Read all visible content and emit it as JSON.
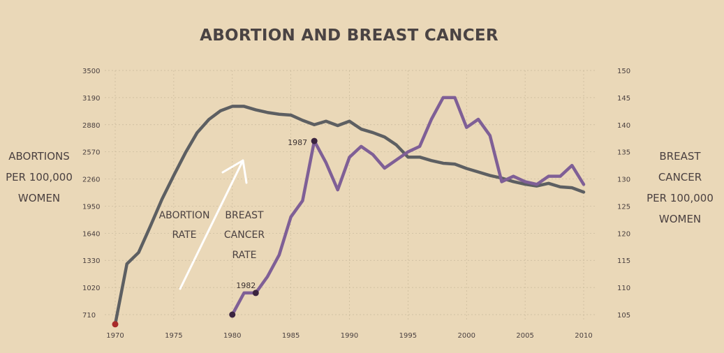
{
  "colors": {
    "background": "#ead8b8",
    "abortion_line": "#5d5f62",
    "cancer_line": "#7f5f96",
    "start_dot": "#a82a2a",
    "highlight_dot": "#3b2440",
    "grid": "#c8b89a",
    "arrow": "#ffffff"
  },
  "chart_data": {
    "type": "line",
    "title": "ABORTION AND BREAST CANCER",
    "x": [
      1970,
      1971,
      1972,
      1973,
      1974,
      1975,
      1976,
      1977,
      1978,
      1979,
      1980,
      1981,
      1982,
      1983,
      1984,
      1985,
      1986,
      1987,
      1988,
      1989,
      1990,
      1991,
      1992,
      1993,
      1994,
      1995,
      1996,
      1997,
      1998,
      1999,
      2000,
      2001,
      2002,
      2003,
      2004,
      2005,
      2006,
      2007,
      2008,
      2009,
      2010
    ],
    "x_ticks": [
      "1970",
      "1975",
      "1980",
      "1985",
      "1990",
      "1995",
      "2000",
      "2005",
      "2010"
    ],
    "xlim": [
      1970,
      2010
    ],
    "y_left": {
      "label": [
        "ABORTIONS",
        "PER 100,000",
        "WOMEN"
      ],
      "ticks": [
        "3500",
        "3190",
        "2880",
        "2570",
        "2260",
        "1950",
        "1640",
        "1330",
        "1020",
        "710"
      ],
      "ylim": [
        600,
        3500
      ]
    },
    "y_right": {
      "label": [
        "BREAST",
        "CANCER",
        "PER 100,000",
        "WOMEN"
      ],
      "ticks": [
        "150",
        "145",
        "140",
        "135",
        "130",
        "125",
        "120",
        "115",
        "110",
        "105"
      ],
      "ylim": [
        103.6,
        150
      ]
    },
    "grid": true,
    "series": [
      {
        "name": "ABORTION RATE",
        "axis": "left",
        "values": [
          600,
          1290,
          1420,
          1720,
          2030,
          2300,
          2560,
          2790,
          2940,
          3040,
          3090,
          3090,
          3050,
          3020,
          3000,
          2990,
          2930,
          2880,
          2920,
          2870,
          2920,
          2830,
          2790,
          2740,
          2650,
          2510,
          2510,
          2470,
          2440,
          2430,
          2380,
          2340,
          2300,
          2270,
          2230,
          2200,
          2180,
          2210,
          2170,
          2160,
          2110
        ]
      },
      {
        "name": "BREAST CANCER RATE",
        "series_label": [
          "BREAST",
          "CANCER",
          "RATE"
        ],
        "axis": "right",
        "x": [
          1980,
          1981,
          1982,
          1983,
          1984,
          1985,
          1986,
          1987,
          1988,
          1989,
          1990,
          1991,
          1992,
          1993,
          1994,
          1995,
          1996,
          1997,
          1998,
          1999,
          2000,
          2001,
          2002,
          2003,
          2004,
          2005,
          2006,
          2007,
          2008,
          2009,
          2010
        ],
        "values": [
          105,
          109,
          109,
          112,
          116,
          123,
          126,
          137,
          133,
          128,
          134,
          136,
          134.5,
          132,
          133.5,
          135,
          136,
          141,
          145,
          145,
          139.5,
          141,
          138,
          129.5,
          130.5,
          129.5,
          129,
          130.5,
          130.5,
          132.5,
          129
        ]
      }
    ],
    "annotations": [
      {
        "label": "ABORTION",
        "label2": "RATE"
      },
      {
        "label": "1982",
        "x": 1982,
        "series": 1
      },
      {
        "label": "1987",
        "x": 1987,
        "series": 1
      }
    ]
  }
}
